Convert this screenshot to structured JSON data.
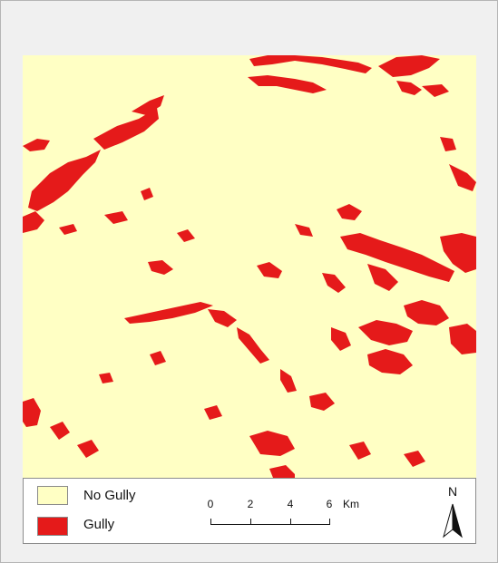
{
  "map": {
    "colors": {
      "no_gully": "#ffffc4",
      "gully": "#e51a1a"
    }
  },
  "legend": {
    "items": [
      {
        "label": "No Gully",
        "color": "#ffffc4"
      },
      {
        "label": "Gully",
        "color": "#e51a1a"
      }
    ]
  },
  "scale_bar": {
    "ticks": [
      "0",
      "2",
      "4",
      "6"
    ],
    "unit": "Km"
  },
  "north_arrow": {
    "label": "N",
    "icon": "north-arrow-icon"
  }
}
